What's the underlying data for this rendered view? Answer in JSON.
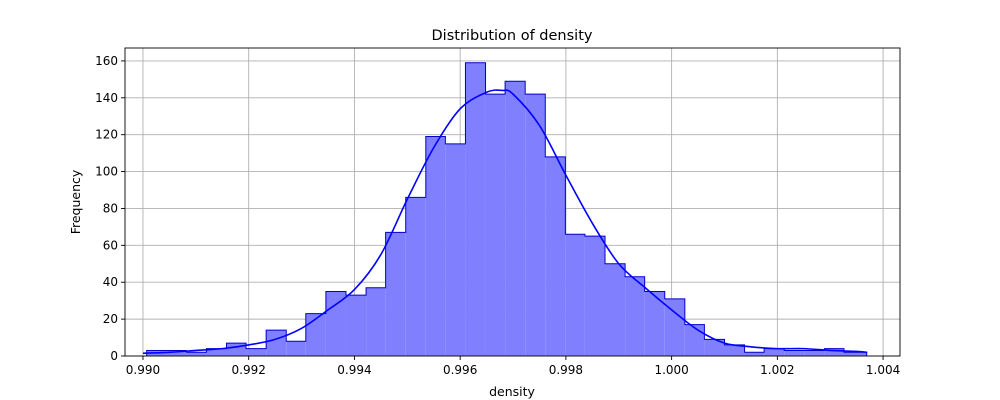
{
  "chart_data": {
    "type": "bar",
    "title": "Distribution of density",
    "xlabel": "density",
    "ylabel": "Frequency",
    "xlim": [
      0.98966,
      1.00432
    ],
    "ylim": [
      0,
      167
    ],
    "xticks": [
      0.99,
      0.992,
      0.994,
      0.996,
      0.998,
      1.0,
      1.002,
      1.004
    ],
    "xtick_labels": [
      "0.990",
      "0.992",
      "0.994",
      "0.996",
      "0.998",
      "1.000",
      "1.002",
      "1.004"
    ],
    "yticks": [
      0,
      20,
      40,
      60,
      80,
      100,
      120,
      140,
      160
    ],
    "ytick_labels": [
      "0",
      "20",
      "40",
      "60",
      "80",
      "100",
      "120",
      "140",
      "160"
    ],
    "grid": true,
    "bins": {
      "edges": [
        0.99007,
        0.99045,
        0.99082,
        0.9912,
        0.99158,
        0.99195,
        0.99233,
        0.99271,
        0.99308,
        0.99346,
        0.99384,
        0.99422,
        0.99459,
        0.99497,
        0.99535,
        0.99572,
        0.9961,
        0.99648,
        0.99685,
        0.99723,
        0.99761,
        0.99799,
        0.99836,
        0.99874,
        0.99912,
        0.99949,
        0.99987,
        1.00025,
        1.00062,
        1.001,
        1.00138,
        1.00175,
        1.00213,
        1.00251,
        1.00289,
        1.00326,
        1.00369
      ],
      "counts": [
        3,
        3,
        2,
        4,
        7,
        4,
        14,
        8,
        23,
        35,
        33,
        37,
        67,
        86,
        119,
        115,
        159,
        142,
        149,
        142,
        108,
        66,
        65,
        50,
        43,
        35,
        31,
        17,
        9,
        6,
        2,
        4,
        3,
        3,
        4,
        2
      ]
    },
    "kde": {
      "x": [
        0.99,
        0.9905,
        0.991,
        0.9915,
        0.992,
        0.9925,
        0.993,
        0.9935,
        0.994,
        0.9945,
        0.995,
        0.9955,
        0.996,
        0.9965,
        0.9968,
        0.997,
        0.9975,
        0.998,
        0.9985,
        0.999,
        0.9995,
        1.0,
        1.0005,
        1.001,
        1.0015,
        1.002,
        1.0025,
        1.003,
        1.0035,
        1.0037
      ],
      "y": [
        1.5,
        2,
        3,
        4,
        6,
        9,
        15,
        25,
        36,
        55,
        85,
        113,
        134,
        143,
        144,
        142,
        125,
        98,
        72,
        50,
        37,
        25,
        14,
        7,
        5,
        4,
        4,
        3,
        2.5,
        2
      ]
    },
    "colors": {
      "bar_fill": "#8080ff",
      "bar_edge": "#0000cc",
      "kde_line": "#0000ff"
    }
  }
}
